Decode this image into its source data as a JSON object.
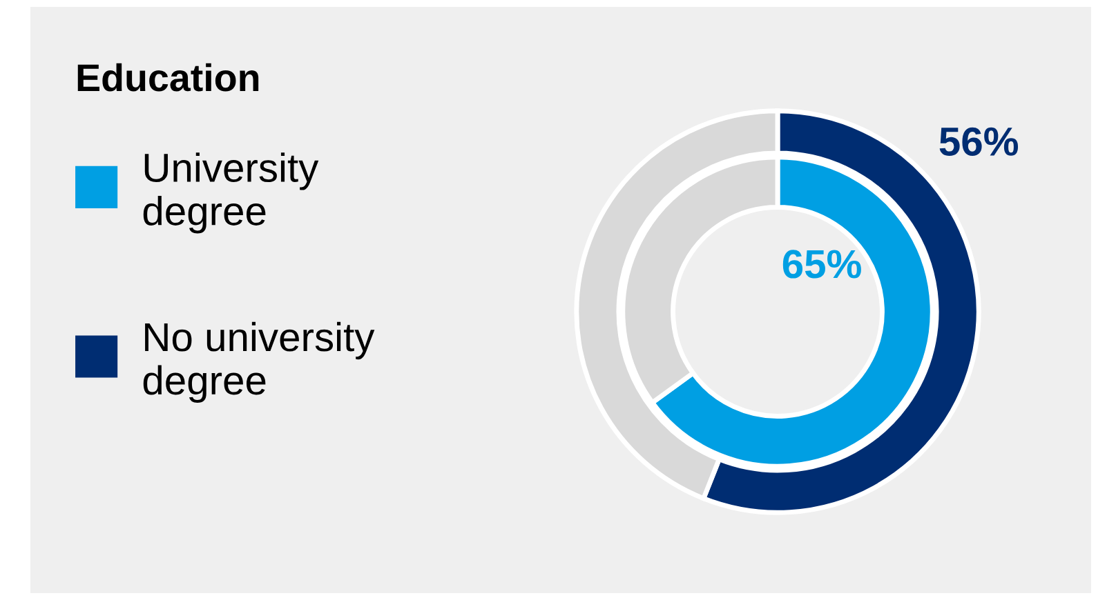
{
  "chart_data": {
    "type": "donut",
    "legend_title": "Education",
    "legend": "left",
    "categories": [
      null,
      null
    ],
    "series": [
      {
        "name": "University degree",
        "color": "#009fe3",
        "colors": [
          "#009fe3",
          "#d9d9d9"
        ],
        "values": [
          65,
          35
        ],
        "value_labels": [
          "65%",
          null
        ]
      },
      {
        "name": "No university degree",
        "color": "#002d72",
        "colors": [
          "#002d72",
          "#d9d9d9"
        ],
        "values": [
          56,
          44
        ],
        "value_labels": [
          "56%",
          null
        ]
      }
    ]
  }
}
